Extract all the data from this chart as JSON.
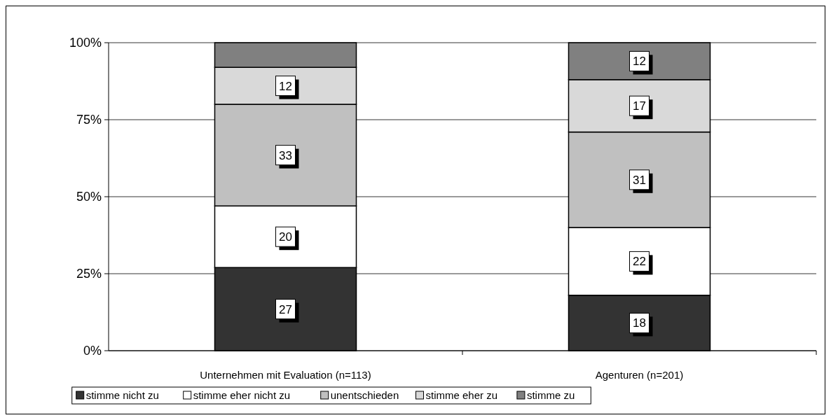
{
  "chart_data": {
    "type": "bar",
    "stacked": true,
    "categories": [
      "Unternehmen mit Evaluation (n=113)",
      "Agenturen (n=201)"
    ],
    "series": [
      {
        "name": "stimme nicht zu",
        "color": "#333333",
        "values": [
          27,
          18
        ],
        "value_labels": [
          "27",
          "18"
        ]
      },
      {
        "name": "stimme eher nicht zu",
        "color": "#ffffff",
        "values": [
          20,
          22
        ],
        "value_labels": [
          "20",
          "22"
        ]
      },
      {
        "name": "unentschieden",
        "color": "#c0c0c0",
        "values": [
          33,
          31
        ],
        "value_labels": [
          "33",
          "31"
        ]
      },
      {
        "name": "stimme eher zu",
        "color": "#d9d9d9",
        "values": [
          12,
          17
        ],
        "value_labels": [
          "12",
          "17"
        ]
      },
      {
        "name": "stimme zu",
        "color": "#808080",
        "values": [
          8,
          12
        ],
        "value_labels": [
          null,
          "12"
        ]
      }
    ],
    "ylim": [
      0,
      100
    ],
    "yticks": [
      {
        "value": 0,
        "label": "0%"
      },
      {
        "value": 25,
        "label": "25%"
      },
      {
        "value": 50,
        "label": "50%"
      },
      {
        "value": 75,
        "label": "75%"
      },
      {
        "value": 100,
        "label": "100%"
      }
    ],
    "grid": "y",
    "legend": "bottom"
  }
}
